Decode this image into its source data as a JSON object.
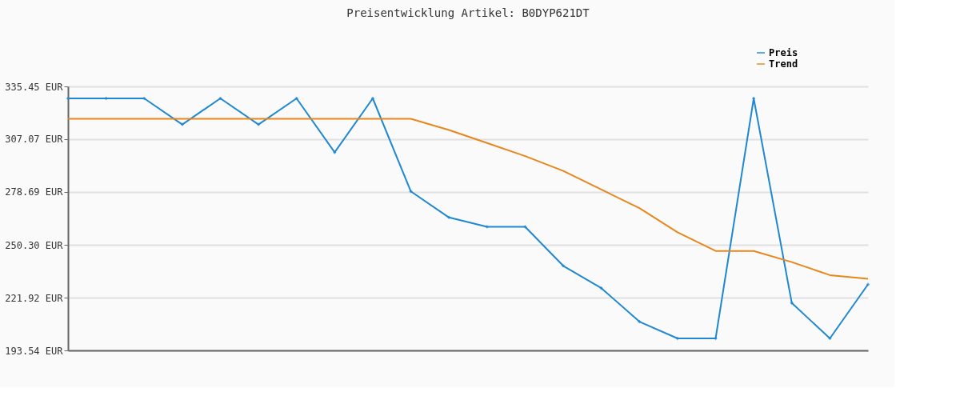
{
  "chart_data": {
    "type": "line",
    "title": "Preisentwicklung Artikel: B0DYP621DT",
    "categories": [
      null,
      null,
      null,
      null,
      null,
      null,
      null,
      null,
      null,
      null,
      null,
      null,
      null,
      null,
      null,
      null,
      null,
      null,
      null,
      null,
      null,
      null
    ],
    "series": [
      {
        "name": "Preis",
        "color": "#1f88d0",
        "marker": "diamond",
        "values": [
          329,
          329,
          329,
          315,
          329,
          315,
          329,
          300,
          329,
          279,
          265,
          260,
          260,
          239,
          227,
          209,
          200,
          200,
          329,
          219,
          200,
          229
        ]
      },
      {
        "name": "Trend",
        "color": "#e8861c",
        "marker": "none",
        "values": [
          318,
          318,
          318,
          318,
          318,
          318,
          318,
          318,
          318,
          318,
          312,
          305,
          298,
          290,
          280,
          270,
          257,
          247,
          247,
          241,
          234,
          232
        ]
      }
    ],
    "ylim": [
      193.54,
      335.45
    ],
    "yticks": [
      {
        "value": 193.54,
        "label": "193.54 EUR"
      },
      {
        "value": 221.92,
        "label": "221.92 EUR"
      },
      {
        "value": 250.3,
        "label": "250.30 EUR"
      },
      {
        "value": 278.69,
        "label": "278.69 EUR"
      },
      {
        "value": 307.07,
        "label": "307.07 EUR"
      },
      {
        "value": 335.45,
        "label": "335.45 EUR"
      }
    ],
    "grid": "y",
    "legend": "top right",
    "tick_labels": "y",
    "line_style": "solid"
  }
}
